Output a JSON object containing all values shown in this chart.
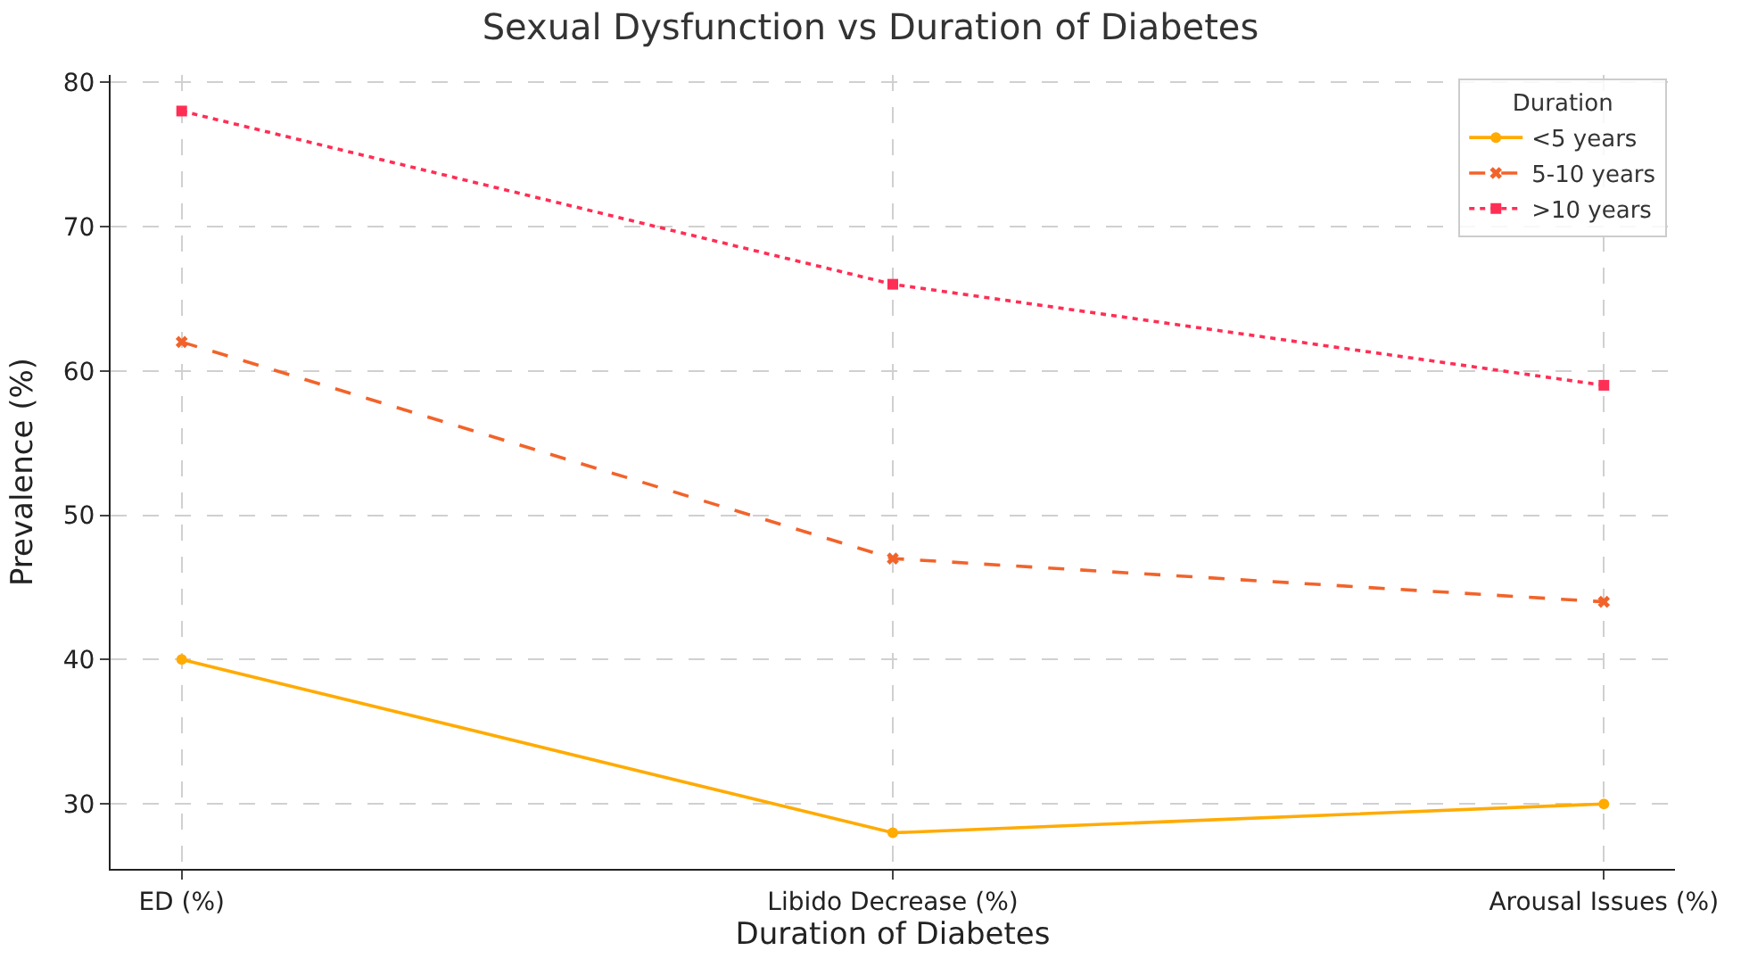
{
  "chart_data": {
    "type": "line",
    "title": "Sexual Dysfunction vs Duration of Diabetes",
    "xlabel": "Duration of Diabetes",
    "ylabel": "Prevalence (%)",
    "legend_title": "Duration",
    "categories": [
      "ED (%)",
      "Libido Decrease (%)",
      "Arousal Issues (%)"
    ],
    "series": [
      {
        "name": "<5 years",
        "color": "#ffab00",
        "values": [
          40,
          28,
          30
        ],
        "marker": "circle",
        "line_style": "solid"
      },
      {
        "name": "5-10 years",
        "color": "#f2632a",
        "values": [
          62,
          47,
          44
        ],
        "marker": "cross",
        "line_style": "dashed"
      },
      {
        "name": ">10 years",
        "color": "#ff2e55",
        "values": [
          78,
          66,
          59
        ],
        "marker": "square",
        "line_style": "dotted"
      }
    ],
    "ylim": [
      25.5,
      80.5
    ],
    "yticks": [
      30,
      40,
      50,
      60,
      70,
      80
    ],
    "grid": true,
    "legend": "top right"
  }
}
